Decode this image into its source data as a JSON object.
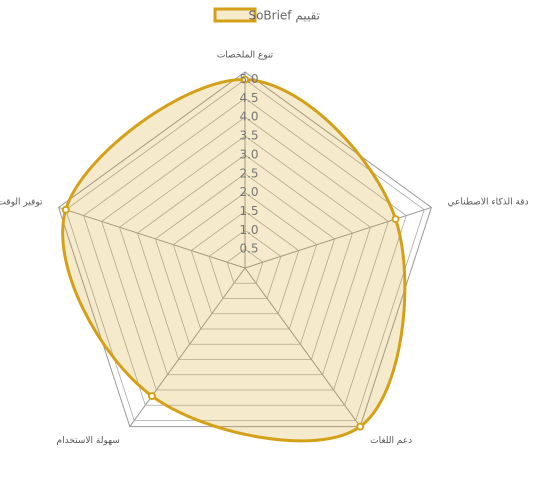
{
  "chart_data": {
    "type": "radar",
    "categories": [
      "تنوع الملخصات",
      "دقة الذكاء الاصطناعي",
      "دعم اللغات",
      "سهولة الاستخدام",
      "توفير الوقت"
    ],
    "series": [
      {
        "name": "تقييم SoBrief",
        "color": "#d4a017",
        "fill": "rgba(212,160,23,0.22)",
        "values": [
          5,
          4.2,
          5.2,
          4.2,
          5
        ]
      }
    ],
    "rlim": [
      0,
      5.2
    ],
    "rticks": [
      0.5,
      {
        "value": 1,
        "label": "1.0"
      },
      1.5,
      {
        "value": 2,
        "label": "2.0"
      },
      2.5,
      {
        "value": 3,
        "label": "3.0"
      },
      3.5,
      {
        "value": 4,
        "label": "4.0"
      },
      4.5,
      {
        "value": 5,
        "label": "5.0"
      }
    ],
    "grid": true,
    "legend": "top"
  }
}
